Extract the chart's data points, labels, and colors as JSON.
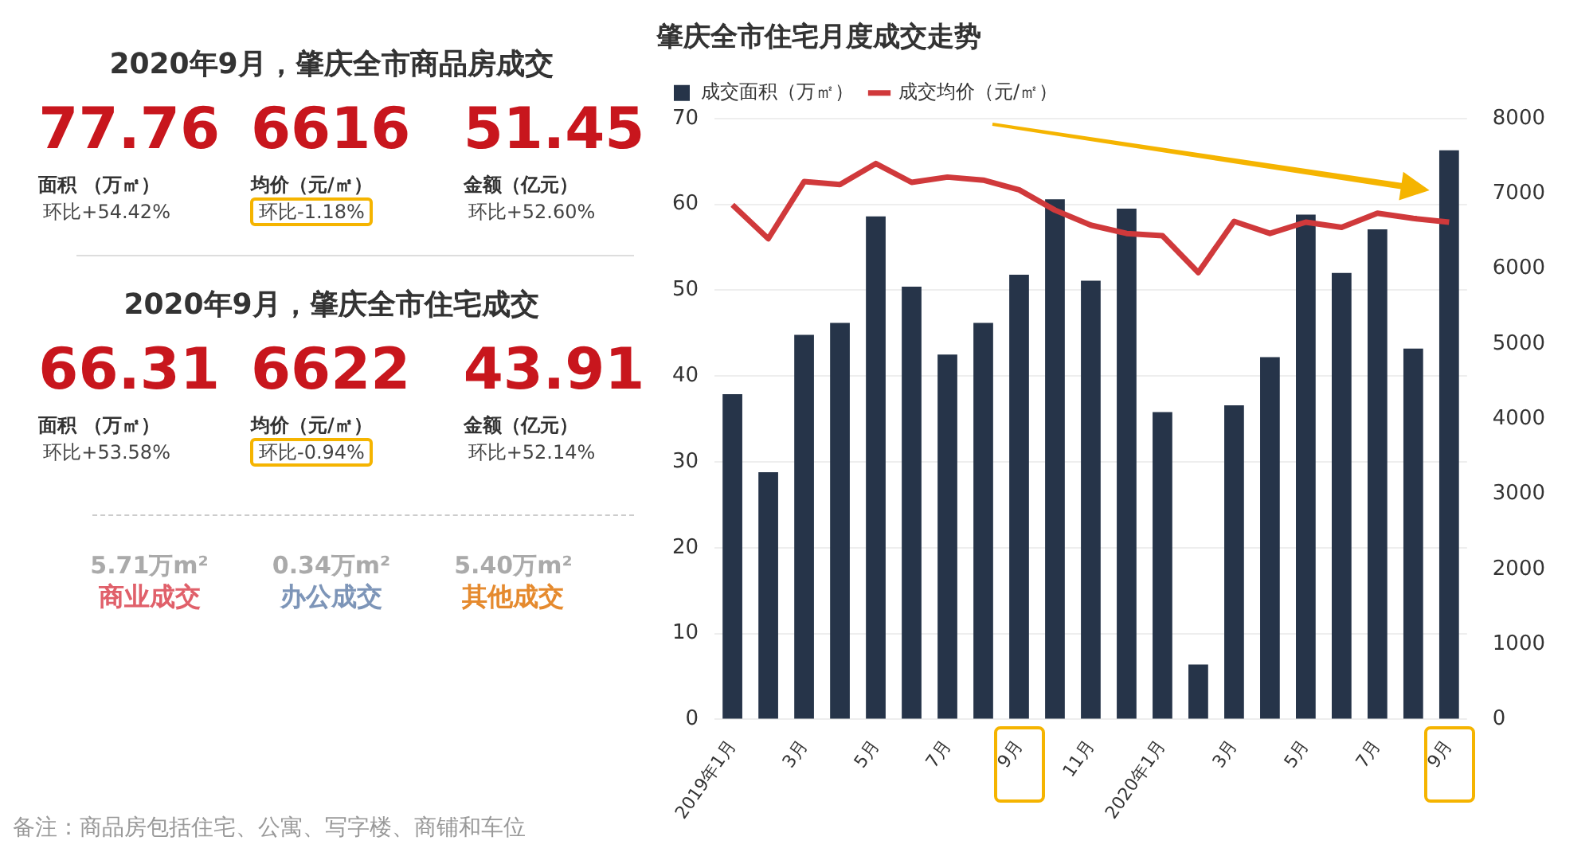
{
  "chart_data": [
    {
      "type": "other",
      "title": "2020年9月，肇庆全市商品房成交",
      "annotations": [
        "77.76",
        "面积 （万㎡）",
        "环比+54.42%",
        "6616",
        "均价（元/㎡）",
        "环比-1.18%",
        "51.45",
        "金额（亿元）",
        "环比+52.60%",
        "2020年9月，肇庆全市住宅成交",
        "66.31",
        "面积 （万㎡）",
        "环比+53.58%",
        "6622",
        "均价（元/㎡）",
        "环比-0.94%",
        "43.91",
        "金额（亿元）",
        "环比+52.14%",
        "5.71万m²",
        "商业成交",
        "0.34万m²",
        "办公成交",
        "5.40万m²",
        "其他成交",
        "备注：商品房包括住宅、公寓、写字楼、商铺和车位"
      ]
    },
    {
      "type": "bar",
      "title": "肇庆全市住宅月度成交走势",
      "categories": [
        "2019年1月",
        null,
        "3月",
        null,
        "5月",
        null,
        "7月",
        null,
        "9月",
        null,
        "11月",
        null,
        "2020年1月",
        null,
        "3月",
        null,
        "5月",
        null,
        "7月",
        null,
        "9月"
      ],
      "series": [
        {
          "name": "成交面积（万㎡）",
          "type": "bar",
          "color": "#263449",
          "values": [
            37.9,
            28.8,
            44.8,
            46.2,
            58.6,
            50.4,
            42.5,
            46.2,
            51.8,
            60.6,
            51.1,
            59.5,
            35.8,
            6.4,
            36.6,
            42.2,
            58.8,
            52.0,
            57.1,
            43.2,
            66.3
          ]
        },
        {
          "name": "成交均价（元/㎡）",
          "type": "line",
          "axis": "y2",
          "color": "#d0393b",
          "values": [
            6850,
            6400,
            7160,
            7120,
            7400,
            7150,
            7220,
            7180,
            7050,
            6780,
            6580,
            6470,
            6440,
            5950,
            6630,
            6470,
            6620,
            6550,
            6740,
            6670,
            6620
          ]
        }
      ],
      "ylim": [
        0,
        70
      ],
      "yticks": [
        0,
        10,
        20,
        30,
        40,
        50,
        60,
        70
      ],
      "y2lim": [
        0,
        8000
      ],
      "y2ticks": [
        0,
        1000,
        2000,
        3000,
        4000,
        5000,
        6000,
        7000,
        8000
      ],
      "grid": "y",
      "legend": "top left",
      "marker": "none",
      "line_style": "solid"
    }
  ]
}
